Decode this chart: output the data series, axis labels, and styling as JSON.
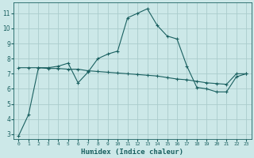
{
  "xlabel": "Humidex (Indice chaleur)",
  "background_color": "#cce8e8",
  "grid_color": "#aacccc",
  "line_color": "#1a6060",
  "xlim": [
    -0.5,
    23.5
  ],
  "ylim": [
    2.7,
    11.7
  ],
  "xticks": [
    0,
    1,
    2,
    3,
    4,
    5,
    6,
    7,
    8,
    9,
    10,
    11,
    12,
    13,
    14,
    15,
    16,
    17,
    18,
    19,
    20,
    21,
    22,
    23
  ],
  "yticks": [
    3,
    4,
    5,
    6,
    7,
    8,
    9,
    10,
    11
  ],
  "line1_x": [
    0,
    1,
    2,
    3,
    4,
    5,
    6,
    7,
    8,
    9,
    10,
    11,
    12,
    13,
    14,
    15,
    16,
    17,
    18,
    19,
    20,
    21,
    22,
    23
  ],
  "line1_y": [
    2.9,
    4.3,
    7.4,
    7.4,
    7.5,
    7.7,
    6.4,
    7.1,
    8.0,
    8.3,
    8.5,
    10.7,
    11.0,
    11.3,
    10.2,
    9.5,
    9.3,
    7.5,
    6.1,
    6.0,
    5.8,
    5.8,
    6.8,
    7.0
  ],
  "line2_x": [
    0,
    1,
    2,
    3,
    4,
    5,
    6,
    7,
    8,
    9,
    10,
    11,
    12,
    13,
    14,
    15,
    16,
    17,
    18,
    19,
    20,
    21,
    22,
    23
  ],
  "line2_y": [
    7.4,
    7.4,
    7.4,
    7.35,
    7.35,
    7.3,
    7.3,
    7.2,
    7.15,
    7.1,
    7.05,
    7.0,
    6.95,
    6.9,
    6.85,
    6.75,
    6.65,
    6.6,
    6.5,
    6.4,
    6.35,
    6.3,
    7.0,
    7.0
  ]
}
